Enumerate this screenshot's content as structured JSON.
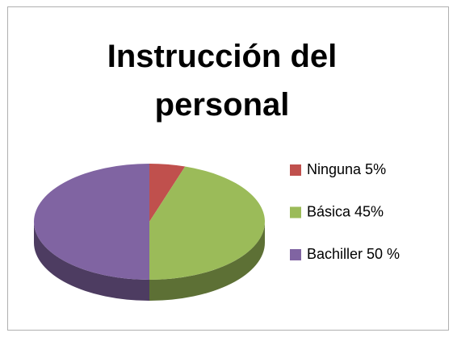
{
  "chart_data": {
    "type": "pie3d",
    "title": "Instrucción del personal",
    "categories": [
      "Ninguna 5%",
      "Básica 45%",
      "Bachiller 50 %"
    ],
    "values": [
      5,
      45,
      50
    ],
    "colors": [
      "#c0504d",
      "#9bbb59",
      "#8064a2"
    ],
    "legend": "right"
  }
}
